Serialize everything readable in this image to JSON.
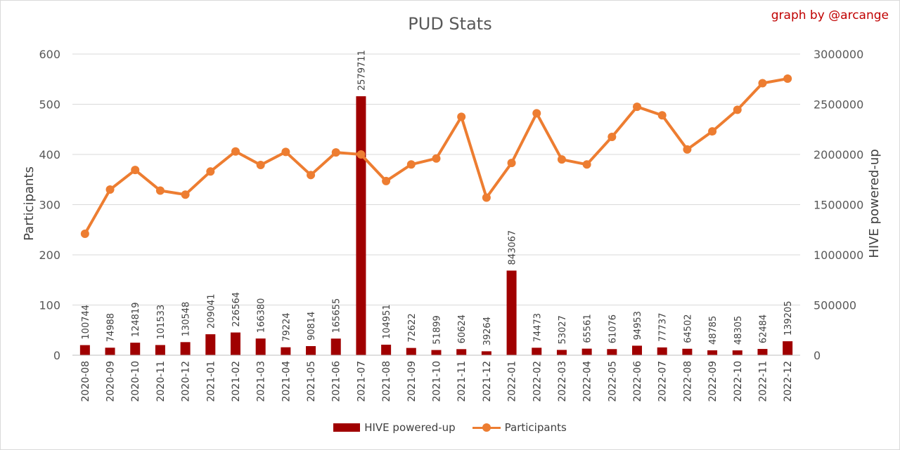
{
  "title": "PUD Stats",
  "credit": "graph by @arcange",
  "legend": {
    "bar_label": "HIVE powered-up",
    "line_label": "Participants"
  },
  "colors": {
    "bar": "#a00000",
    "line": "#ed7d31",
    "grid": "#d9d9d9"
  },
  "chart_data": {
    "type": "bar+line",
    "title": "PUD Stats",
    "ylabel_left": "Participants",
    "ylabel_right": "HIVE powered-up",
    "ylim_left": [
      0,
      600
    ],
    "ylim_right": [
      0,
      3000000
    ],
    "yticks_left": [
      "0",
      "100",
      "200",
      "300",
      "400",
      "500",
      "600"
    ],
    "yticks_right": [
      "0",
      "500000",
      "1000000",
      "1500000",
      "2000000",
      "2500000",
      "3000000"
    ],
    "grid": true,
    "legend_position": "bottom",
    "categories": [
      "2020-08",
      "2020-09",
      "2020-10",
      "2020-11",
      "2020-12",
      "2021-01",
      "2021-02",
      "2021-03",
      "2021-04",
      "2021-05",
      "2021-06",
      "2021-07",
      "2021-08",
      "2021-09",
      "2021-10",
      "2021-11",
      "2021-12",
      "2022-01",
      "2022-02",
      "2022-03",
      "2022-04",
      "2022-05",
      "2022-06",
      "2022-07",
      "2022-08",
      "2022-09",
      "2022-10",
      "2022-11",
      "2022-12"
    ],
    "series": [
      {
        "name": "HIVE powered-up",
        "type": "bar",
        "axis": "right",
        "values": [
          100744,
          74988,
          124819,
          101533,
          130548,
          209041,
          226564,
          166380,
          79224,
          90814,
          165655,
          2579711,
          104951,
          72622,
          51899,
          60624,
          39264,
          843067,
          74473,
          53027,
          65561,
          61076,
          94953,
          77737,
          64502,
          48785,
          48305,
          62484,
          139205
        ]
      },
      {
        "name": "Participants",
        "type": "line",
        "axis": "left",
        "values": [
          242,
          330,
          369,
          328,
          320,
          366,
          406,
          379,
          405,
          359,
          404,
          400,
          347,
          380,
          392,
          475,
          314,
          383,
          482,
          390,
          380,
          435,
          495,
          478,
          410,
          446,
          489,
          542,
          551
        ]
      }
    ]
  }
}
